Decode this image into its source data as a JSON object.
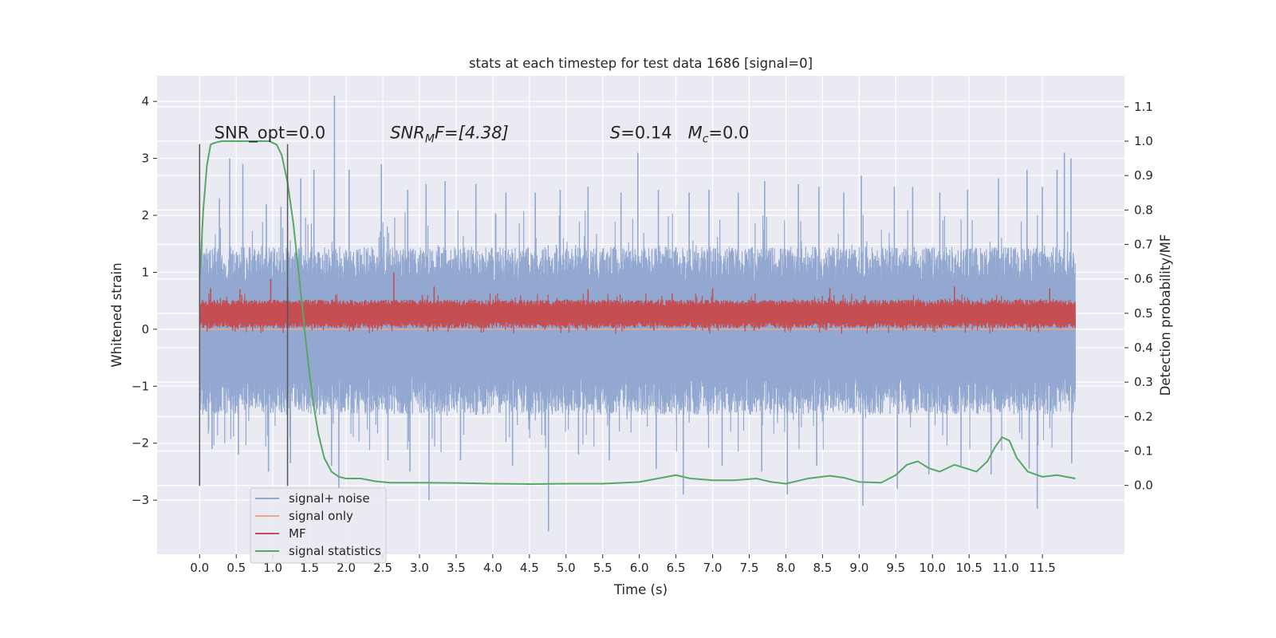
{
  "chart_data": {
    "type": "line",
    "title": "stats at each timestep for test data 1686 [signal=0]",
    "xlabel": "Time (s)",
    "ylabel": "Whitened strain",
    "ylabel_right": "Detection probability/MF",
    "xlim": [
      -0.58,
      12.62
    ],
    "ylim": [
      -3.95,
      4.45
    ],
    "ylim_right": [
      -0.2,
      1.19
    ],
    "x_ticks": [
      0.0,
      0.5,
      1.0,
      1.5,
      2.0,
      2.5,
      3.0,
      3.5,
      4.0,
      4.5,
      5.0,
      5.5,
      6.0,
      6.5,
      7.0,
      7.5,
      8.0,
      8.5,
      9.0,
      9.5,
      10.0,
      10.5,
      11.0,
      11.5
    ],
    "x_tick_labels": [
      "0.0",
      "0.5",
      "1.0",
      "1.5",
      "2.0",
      "2.5",
      "3.0",
      "3.5",
      "4.0",
      "4.5",
      "5.0",
      "5.5",
      "6.0",
      "6.5",
      "7.0",
      "7.5",
      "8.0",
      "8.5",
      "9.0",
      "9.5",
      "10.0",
      "10.5",
      "11.0",
      "11.5"
    ],
    "y_ticks": [
      4,
      3,
      2,
      1,
      0,
      -1,
      -2,
      -3
    ],
    "y_tick_labels": [
      "4",
      "3",
      "2",
      "1",
      "0",
      "−1",
      "−2",
      "−3"
    ],
    "y_ticks_right": [
      1.1,
      1.0,
      0.9,
      0.8,
      0.7,
      0.6,
      0.5,
      0.4,
      0.3,
      0.2,
      0.1,
      0.0
    ],
    "y_tick_labels_right": [
      "1.1",
      "1.0",
      "0.9",
      "0.8",
      "0.7",
      "0.6",
      "0.5",
      "0.4",
      "0.3",
      "0.2",
      "0.1",
      "0.0"
    ],
    "grid": true,
    "legend_position": "lower-left",
    "annotations": [
      {
        "text": "SNR_opt=0.0",
        "x": 0.2,
        "y": 3.35
      },
      {
        "text": "SNR_MF=[4.38]",
        "x": 2.6,
        "y": 3.35
      },
      {
        "text": "S=0.14   M_c=0.0",
        "x": 5.6,
        "y": 3.35
      }
    ],
    "annotation_display": {
      "snr_opt": "SNR_opt=0.0",
      "snr_mf_main": "SNR",
      "snr_mf_sub": "M",
      "snr_mf_rest": "F=[4.38]",
      "s_main": "S",
      "s_rest": "=0.14",
      "mc_main": "M",
      "mc_sub": "c",
      "mc_rest": "=0.0"
    },
    "vertical_markers": [
      {
        "x": 0.0,
        "ymin": -2.75,
        "ymax": 3.25
      },
      {
        "x": 1.2,
        "ymin": -2.75,
        "ymax": 3.25
      }
    ],
    "series": [
      {
        "name": "signal+ noise",
        "color": "#92a8d1",
        "axis": "left",
        "x_range": [
          0.0,
          11.95
        ],
        "envelope": {
          "core_min": -1.5,
          "core_max": 1.45,
          "mean": 0.0
        },
        "spikes_up": [
          [
            0.27,
            2.3
          ],
          [
            0.41,
            3.0
          ],
          [
            0.59,
            2.9
          ],
          [
            0.91,
            2.2
          ],
          [
            1.11,
            2.15
          ],
          [
            1.38,
            2.65
          ],
          [
            1.56,
            2.8
          ],
          [
            1.84,
            4.1
          ],
          [
            2.04,
            2.8
          ],
          [
            2.48,
            2.9
          ],
          [
            2.84,
            2.45
          ],
          [
            3.09,
            2.55
          ],
          [
            3.35,
            2.6
          ],
          [
            3.77,
            2.55
          ],
          [
            4.18,
            2.4
          ],
          [
            4.58,
            2.4
          ],
          [
            4.92,
            2.45
          ],
          [
            5.3,
            2.5
          ],
          [
            5.75,
            2.4
          ],
          [
            5.98,
            3.1
          ],
          [
            6.26,
            2.45
          ],
          [
            6.68,
            2.4
          ],
          [
            6.95,
            2.45
          ],
          [
            7.35,
            2.4
          ],
          [
            7.71,
            2.6
          ],
          [
            8.17,
            2.55
          ],
          [
            8.45,
            2.5
          ],
          [
            8.79,
            2.4
          ],
          [
            9.03,
            2.7
          ],
          [
            9.48,
            2.5
          ],
          [
            9.73,
            2.5
          ],
          [
            10.1,
            2.4
          ],
          [
            10.48,
            2.45
          ],
          [
            10.9,
            2.65
          ],
          [
            11.29,
            2.8
          ],
          [
            11.5,
            2.5
          ],
          [
            11.7,
            2.8
          ],
          [
            11.8,
            3.1
          ],
          [
            11.89,
            3.0
          ]
        ],
        "spikes_down": [
          [
            0.17,
            -2.1
          ],
          [
            0.53,
            -2.2
          ],
          [
            0.94,
            -2.5
          ],
          [
            1.24,
            -2.35
          ],
          [
            1.8,
            -2.4
          ],
          [
            1.9,
            -2.8
          ],
          [
            2.57,
            -2.3
          ],
          [
            2.87,
            -2.5
          ],
          [
            3.13,
            -3.0
          ],
          [
            3.56,
            -2.3
          ],
          [
            4.27,
            -2.4
          ],
          [
            4.76,
            -3.55
          ],
          [
            5.17,
            -2.2
          ],
          [
            5.59,
            -2.3
          ],
          [
            6.23,
            -2.45
          ],
          [
            6.6,
            -2.9
          ],
          [
            7.13,
            -2.4
          ],
          [
            7.67,
            -2.5
          ],
          [
            8.02,
            -2.9
          ],
          [
            8.42,
            -2.4
          ],
          [
            9.05,
            -3.1
          ],
          [
            9.52,
            -2.8
          ],
          [
            9.95,
            -2.55
          ],
          [
            10.39,
            -2.4
          ],
          [
            10.8,
            -2.55
          ],
          [
            11.32,
            -2.45
          ],
          [
            11.43,
            -3.15
          ],
          [
            11.9,
            -2.35
          ]
        ]
      },
      {
        "name": "signal only",
        "color": "#e8a88a",
        "axis": "left",
        "x": [
          0.0,
          11.95
        ],
        "y": [
          0.0,
          0.0
        ]
      },
      {
        "name": "MF",
        "color": "#c44e52",
        "axis": "left",
        "x_range": [
          0.0,
          11.95
        ],
        "envelope": {
          "core_min": 0.02,
          "core_max": 0.52,
          "mean": 0.26
        },
        "spikes_up": [
          [
            0.15,
            0.72
          ],
          [
            0.55,
            0.7
          ],
          [
            0.97,
            0.88
          ],
          [
            1.2,
            0.72
          ],
          [
            2.65,
            1.0
          ],
          [
            3.2,
            0.75
          ],
          [
            5.3,
            0.7
          ],
          [
            7.0,
            0.72
          ],
          [
            8.6,
            0.72
          ],
          [
            10.3,
            0.75
          ],
          [
            11.6,
            0.72
          ]
        ],
        "spikes_down": [
          [
            0.45,
            -0.02
          ],
          [
            2.1,
            -0.02
          ],
          [
            6.2,
            -0.02
          ],
          [
            9.6,
            -0.02
          ]
        ]
      },
      {
        "name": "signal statistics",
        "color": "#55a868",
        "axis": "right",
        "x": [
          0.0,
          0.05,
          0.1,
          0.15,
          0.2,
          0.3,
          0.4,
          0.6,
          0.8,
          0.95,
          1.05,
          1.12,
          1.2,
          1.28,
          1.35,
          1.42,
          1.48,
          1.55,
          1.62,
          1.7,
          1.8,
          1.9,
          2.0,
          2.2,
          2.4,
          2.6,
          3.0,
          3.5,
          4.0,
          4.5,
          5.0,
          5.5,
          6.0,
          6.2,
          6.5,
          6.7,
          7.0,
          7.3,
          7.6,
          7.8,
          8.0,
          8.3,
          8.6,
          8.8,
          9.0,
          9.3,
          9.5,
          9.65,
          9.8,
          9.95,
          10.1,
          10.3,
          10.45,
          10.6,
          10.75,
          10.85,
          10.95,
          11.05,
          11.15,
          11.3,
          11.5,
          11.7,
          11.95
        ],
        "y": [
          0.6,
          0.8,
          0.93,
          0.99,
          0.995,
          1.0,
          1.0,
          1.0,
          1.0,
          1.0,
          0.99,
          0.96,
          0.88,
          0.76,
          0.62,
          0.48,
          0.36,
          0.24,
          0.15,
          0.08,
          0.04,
          0.025,
          0.02,
          0.02,
          0.012,
          0.008,
          0.008,
          0.007,
          0.005,
          0.004,
          0.005,
          0.005,
          0.01,
          0.018,
          0.03,
          0.02,
          0.015,
          0.015,
          0.02,
          0.01,
          0.005,
          0.02,
          0.028,
          0.022,
          0.01,
          0.008,
          0.03,
          0.06,
          0.07,
          0.05,
          0.04,
          0.06,
          0.05,
          0.04,
          0.07,
          0.11,
          0.14,
          0.13,
          0.08,
          0.04,
          0.025,
          0.03,
          0.02
        ]
      }
    ]
  }
}
